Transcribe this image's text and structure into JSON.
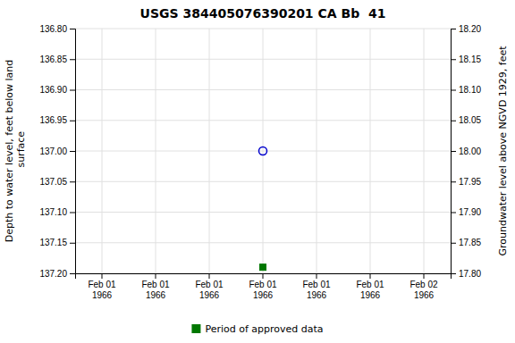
{
  "chart_data": {
    "type": "scatter",
    "title": "USGS 384405076390201 CA Bb  41",
    "ylabel": "Depth to water level, feet below land\n surface",
    "y2label": "Groundwater level above NGVD 1929, feet",
    "categories": [
      "Feb 01\n1966",
      "Feb 01\n1966",
      "Feb 01\n1966",
      "Feb 01\n1966",
      "Feb 01\n1966",
      "Feb 01\n1966",
      "Feb 02\n1966"
    ],
    "series": [
      {
        "color": "#0000cc",
        "marker": "circle",
        "values": [
          null,
          null,
          null,
          137.0,
          null,
          null,
          null
        ]
      },
      {
        "name": "Period of approved data",
        "color": "#007700",
        "marker": "square",
        "values": [
          null,
          null,
          null,
          137.19,
          null,
          null,
          null
        ]
      }
    ],
    "ylim": [
      137.2,
      136.8
    ],
    "yticks": [
      {
        "value": 136.8,
        "label": "136.80"
      },
      {
        "value": 136.85,
        "label": "136.85"
      },
      {
        "value": 136.9,
        "label": "136.90"
      },
      {
        "value": 136.95,
        "label": "136.95"
      },
      {
        "value": 137.0,
        "label": "137.00"
      },
      {
        "value": 137.05,
        "label": "137.05"
      },
      {
        "value": 137.1,
        "label": "137.10"
      },
      {
        "value": 137.15,
        "label": "137.15"
      },
      {
        "value": 137.2,
        "label": "137.20"
      }
    ],
    "y2lim": [
      17.8,
      18.2
    ],
    "y2ticks": [
      {
        "value": 18.2,
        "label": "18.20"
      },
      {
        "value": 18.15,
        "label": "18.15"
      },
      {
        "value": 18.1,
        "label": "18.10"
      },
      {
        "value": 18.05,
        "label": "18.05"
      },
      {
        "value": 18.0,
        "label": "18.00"
      },
      {
        "value": 17.95,
        "label": "17.95"
      },
      {
        "value": 17.9,
        "label": "17.90"
      },
      {
        "value": 17.85,
        "label": "17.85"
      },
      {
        "value": 17.8,
        "label": "17.80"
      }
    ],
    "grid": true,
    "legend": "bottom"
  }
}
